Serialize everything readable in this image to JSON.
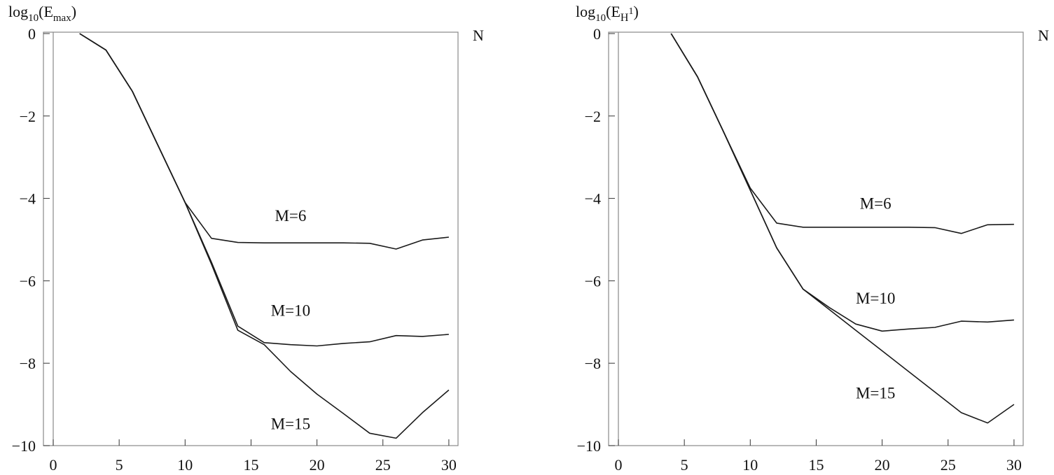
{
  "chart_data": [
    {
      "type": "line",
      "ylabel": {
        "base": "log",
        "sub1": "10",
        "mid": "(E",
        "sub2": "max",
        "end": ")"
      },
      "xlabel": "N",
      "xlim": [
        0,
        30
      ],
      "ylim": [
        -10,
        0
      ],
      "xticks": [
        0,
        5,
        10,
        15,
        20,
        25,
        30
      ],
      "yticks": [
        0,
        -2,
        -4,
        -6,
        -8,
        -10
      ],
      "xtick_labels": [
        "0",
        "5",
        "10",
        "15",
        "20",
        "25",
        "30"
      ],
      "ytick_labels": [
        "0",
        "−2",
        "−4",
        "−6",
        "−8",
        "−10"
      ],
      "series": [
        {
          "name": "M=6",
          "label_at": [
            18,
            -4.55
          ],
          "x": [
            2,
            4,
            6,
            8,
            10,
            12,
            14,
            16,
            18,
            20,
            22,
            24,
            26,
            28,
            30
          ],
          "y": [
            0,
            -0.4,
            -1.4,
            -2.75,
            -4.1,
            -4.97,
            -5.07,
            -5.08,
            -5.08,
            -5.08,
            -5.08,
            -5.09,
            -5.23,
            -5.01,
            -4.94
          ]
        },
        {
          "name": "M=10",
          "label_at": [
            18,
            -6.85
          ],
          "x": [
            2,
            4,
            6,
            8,
            10,
            12,
            14,
            16,
            18,
            20,
            22,
            24,
            26,
            28,
            30
          ],
          "y": [
            0,
            -0.4,
            -1.4,
            -2.75,
            -4.1,
            -5.55,
            -7.1,
            -7.5,
            -7.55,
            -7.58,
            -7.52,
            -7.48,
            -7.33,
            -7.35,
            -7.3
          ]
        },
        {
          "name": "M=15",
          "label_at": [
            18,
            -9.6
          ],
          "x": [
            2,
            4,
            6,
            8,
            10,
            12,
            14,
            16,
            18,
            20,
            22,
            24,
            26,
            28,
            30
          ],
          "y": [
            0,
            -0.4,
            -1.4,
            -2.75,
            -4.1,
            -5.6,
            -7.2,
            -7.55,
            -8.2,
            -8.75,
            -9.22,
            -9.7,
            -9.82,
            -9.2,
            -8.65
          ]
        }
      ]
    },
    {
      "type": "line",
      "ylabel": {
        "base": "log",
        "sub1": "10",
        "mid": "(E",
        "sub2": "H",
        "sup": "1",
        "end": ")"
      },
      "xlabel": "N",
      "xlim": [
        0,
        30
      ],
      "ylim": [
        -10,
        0
      ],
      "xticks": [
        0,
        5,
        10,
        15,
        20,
        25,
        30
      ],
      "yticks": [
        0,
        -2,
        -4,
        -6,
        -8,
        -10
      ],
      "xtick_labels": [
        "0",
        "5",
        "10",
        "15",
        "20",
        "25",
        "30"
      ],
      "ytick_labels": [
        "0",
        "−2",
        "−4",
        "−6",
        "−8",
        "−10"
      ],
      "series": [
        {
          "name": "M=6",
          "label_at": [
            19.5,
            -4.25
          ],
          "x": [
            4,
            6,
            8,
            10,
            12,
            14,
            16,
            18,
            20,
            22,
            24,
            26,
            28,
            30
          ],
          "y": [
            0,
            -1.05,
            -2.4,
            -3.75,
            -4.6,
            -4.7,
            -4.7,
            -4.7,
            -4.7,
            -4.7,
            -4.71,
            -4.85,
            -4.64,
            -4.63
          ]
        },
        {
          "name": "M=10",
          "label_at": [
            19.5,
            -6.55
          ],
          "x": [
            4,
            6,
            8,
            10,
            12,
            14,
            16,
            18,
            20,
            22,
            24,
            26,
            28,
            30
          ],
          "y": [
            0,
            -1.05,
            -2.4,
            -3.8,
            -5.2,
            -6.2,
            -6.65,
            -7.05,
            -7.22,
            -7.17,
            -7.13,
            -6.98,
            -7.0,
            -6.95
          ]
        },
        {
          "name": "M=15",
          "label_at": [
            19.5,
            -8.85
          ],
          "x": [
            4,
            6,
            8,
            10,
            12,
            14,
            16,
            18,
            20,
            22,
            24,
            26,
            28,
            30
          ],
          "y": [
            0,
            -1.05,
            -2.4,
            -3.8,
            -5.2,
            -6.2,
            -6.7,
            -7.2,
            -7.7,
            -8.2,
            -8.7,
            -9.2,
            -9.45,
            -9.0
          ]
        }
      ]
    }
  ]
}
